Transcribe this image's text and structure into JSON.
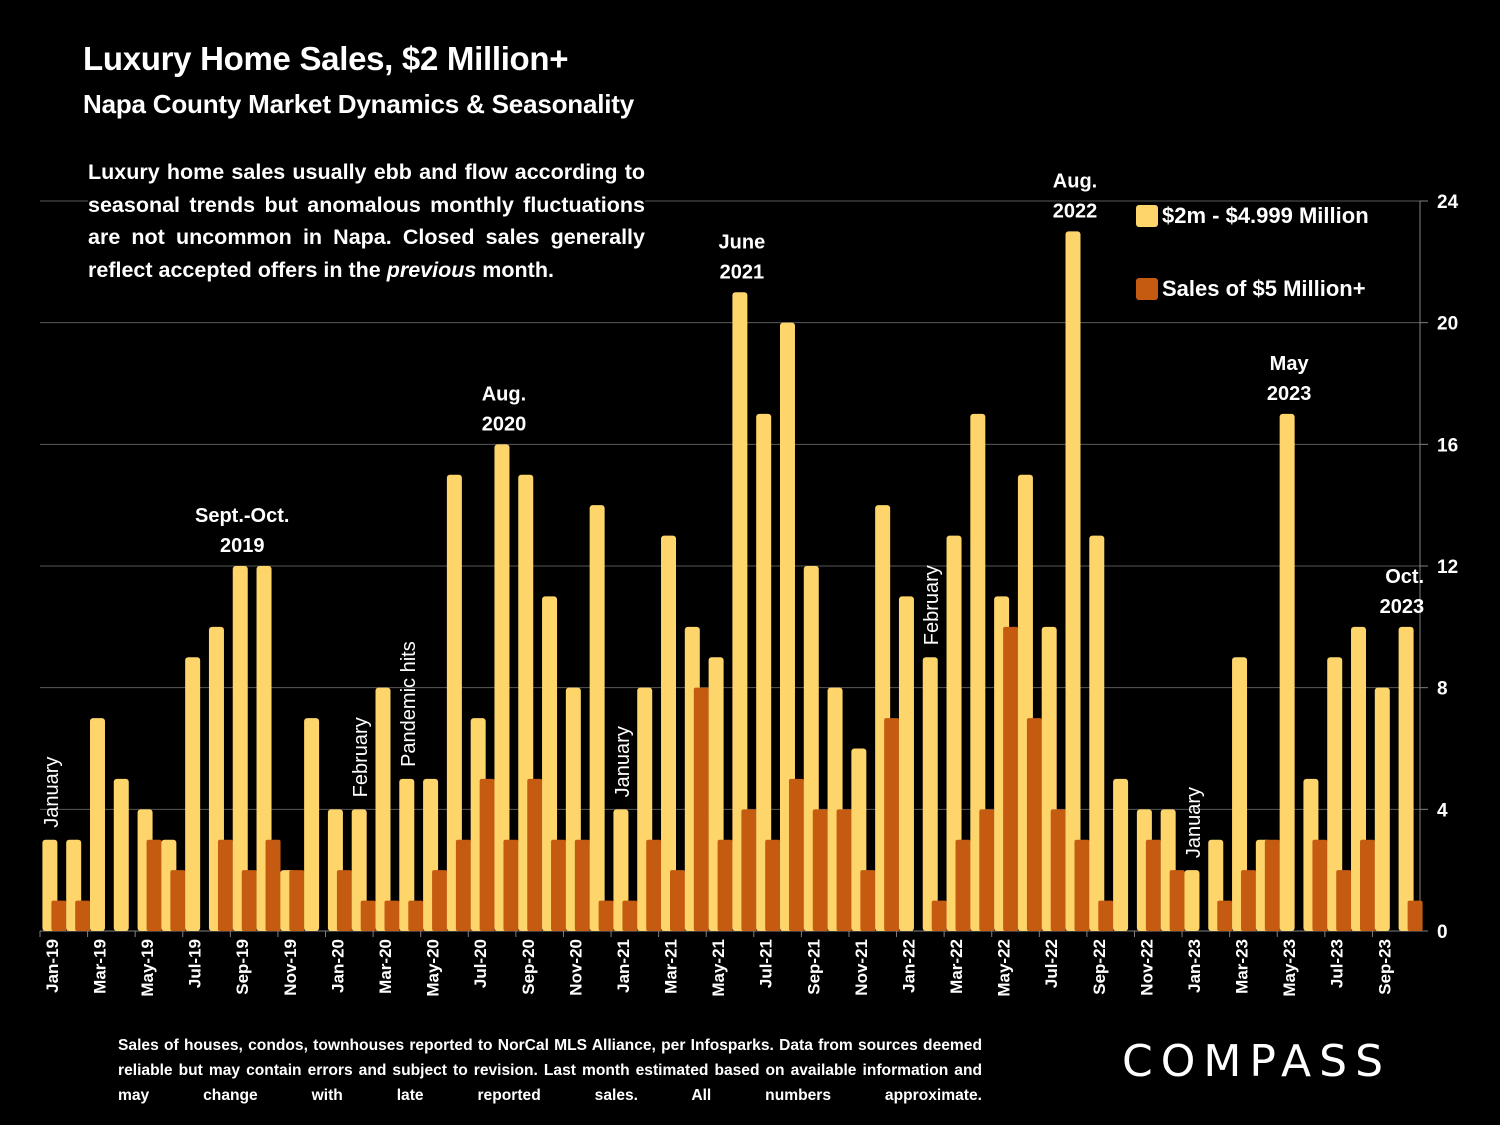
{
  "header": {
    "title": "Luxury Home Sales, $2 Million+",
    "subtitle": "Napa County Market Dynamics & Seasonality"
  },
  "blurb": {
    "before_italic": "Luxury home sales usually ebb and flow according to seasonal trends but anomalous monthly fluctuations are not uncommon in Napa.  Closed sales generally reflect accepted offers in the ",
    "italic": "previous",
    "after_italic": " month."
  },
  "footer": {
    "note": "Sales of houses, condos, townhouses reported to NorCal MLS Alliance, per Infosparks. Data from sources deemed reliable but may contain errors and subject to revision. Last month estimated based on available information and may change with late reported sales. All numbers approximate.",
    "brand": "COMPASS"
  },
  "colors": {
    "background": "#000000",
    "series_2m_5m": "#FDD56B",
    "series_5m_plus": "#C55A11",
    "text": "#FFFFFF",
    "grid": "#595959"
  },
  "chart_data": {
    "type": "bar",
    "title": "Luxury Home Sales, $2 Million+",
    "xlabel": "",
    "ylabel": "",
    "ylim": [
      0,
      24
    ],
    "yticks": [
      0,
      4,
      8,
      12,
      16,
      20,
      24
    ],
    "y_axis_side": "right",
    "grid": true,
    "legend_position": "top-right",
    "categories": [
      "Jan-19",
      "Feb-19",
      "Mar-19",
      "Apr-19",
      "May-19",
      "Jun-19",
      "Jul-19",
      "Aug-19",
      "Sep-19",
      "Oct-19",
      "Nov-19",
      "Dec-19",
      "Jan-20",
      "Feb-20",
      "Mar-20",
      "Apr-20",
      "May-20",
      "Jun-20",
      "Jul-20",
      "Aug-20",
      "Sep-20",
      "Oct-20",
      "Nov-20",
      "Dec-20",
      "Jan-21",
      "Feb-21",
      "Mar-21",
      "Apr-21",
      "May-21",
      "Jun-21",
      "Jul-21",
      "Aug-21",
      "Sep-21",
      "Oct-21",
      "Nov-21",
      "Dec-21",
      "Jan-22",
      "Feb-22",
      "Mar-22",
      "Apr-22",
      "May-22",
      "Jun-22",
      "Jul-22",
      "Aug-22",
      "Sep-22",
      "Oct-22",
      "Nov-22",
      "Dec-22",
      "Jan-23",
      "Feb-23",
      "Mar-23",
      "Apr-23",
      "May-23",
      "Jun-23",
      "Jul-23",
      "Aug-23",
      "Sep-23",
      "Oct-23"
    ],
    "tick_labels": [
      "Jan-19",
      "Mar-19",
      "May-19",
      "Jul-19",
      "Sep-19",
      "Nov-19",
      "Jan-20",
      "Mar-20",
      "May-20",
      "Jul-20",
      "Sep-20",
      "Nov-20",
      "Jan-21",
      "Mar-21",
      "May-21",
      "Jul-21",
      "Sep-21",
      "Nov-21",
      "Jan-22",
      "Mar-22",
      "May-22",
      "Jul-22",
      "Sep-22",
      "Nov-22",
      "Jan-23",
      "Mar-23",
      "May-23",
      "Jul-23",
      "Sep-23"
    ],
    "series": [
      {
        "name": "$2m - $4.999 Million",
        "color": "#FDD56B",
        "values": [
          3,
          3,
          7,
          5,
          4,
          3,
          9,
          10,
          12,
          12,
          2,
          7,
          4,
          4,
          8,
          5,
          5,
          15,
          7,
          16,
          15,
          11,
          8,
          14,
          4,
          8,
          13,
          10,
          9,
          21,
          17,
          20,
          12,
          8,
          6,
          14,
          11,
          9,
          13,
          17,
          11,
          15,
          10,
          23,
          13,
          5,
          4,
          4,
          2,
          3,
          9,
          3,
          17,
          5,
          9,
          10,
          8,
          10
        ]
      },
      {
        "name": "Sales of $5 Million+",
        "color": "#C55A11",
        "values": [
          1,
          1,
          0,
          0,
          3,
          2,
          0,
          3,
          2,
          3,
          2,
          0,
          2,
          1,
          1,
          1,
          2,
          3,
          5,
          3,
          5,
          3,
          3,
          1,
          1,
          3,
          2,
          8,
          3,
          4,
          3,
          5,
          4,
          4,
          2,
          7,
          0,
          1,
          3,
          4,
          10,
          7,
          4,
          3,
          1,
          0,
          3,
          2,
          0,
          1,
          2,
          3,
          0,
          3,
          2,
          3,
          0,
          1
        ]
      }
    ],
    "annotations": [
      {
        "text": "January",
        "category": "Jan-19",
        "rotated": true
      },
      {
        "text": "Sept.-Oct. 2019",
        "category": "Sep-19",
        "rotated": false
      },
      {
        "text": "February",
        "category": "Feb-20",
        "rotated": true
      },
      {
        "text": "Pandemic hits",
        "category": "Apr-20",
        "rotated": true
      },
      {
        "text": "Aug. 2020",
        "category": "Aug-20",
        "rotated": false
      },
      {
        "text": "January",
        "category": "Jan-21",
        "rotated": true
      },
      {
        "text": "June 2021",
        "category": "Jun-21",
        "rotated": false
      },
      {
        "text": "February",
        "category": "Feb-22",
        "rotated": true
      },
      {
        "text": "Aug. 2022",
        "category": "Aug-22",
        "rotated": false
      },
      {
        "text": "January",
        "category": "Jan-23",
        "rotated": true
      },
      {
        "text": "May 2023",
        "category": "May-23",
        "rotated": false
      },
      {
        "text": "Oct. 2023",
        "category": "Oct-23",
        "rotated": false
      }
    ]
  }
}
